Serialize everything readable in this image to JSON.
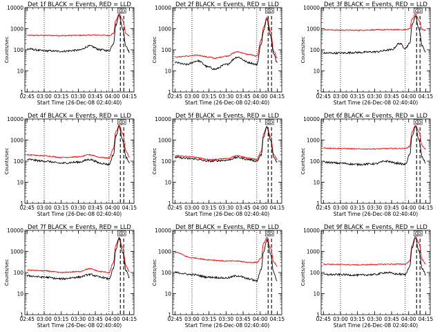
{
  "chart_data": {
    "type": "line",
    "layout": "3x3 grid of panels",
    "y_scale": "log",
    "ylim": [
      1,
      10000
    ],
    "xlim": [
      "02:43",
      "04:19"
    ],
    "x_ticks": [
      "02:45",
      "03:00",
      "03:15",
      "03:30",
      "03:45",
      "04:00",
      "04:15"
    ],
    "y_ticks": [
      "1",
      "10",
      "100",
      "1000",
      "10000"
    ],
    "ylabel": "Counts/sec",
    "xlabel": "Start Time (26-Dec-08 02:40:40)",
    "series_colors": {
      "events": "#000000",
      "lld": "#ff0000"
    },
    "panels": [
      {
        "title": "Det 1f BLACK = Events, RED = LLD",
        "vlines_dotted": [
          "03:00",
          "03:57"
        ],
        "vlines_dashed": [
          "04:07",
          "04:10"
        ],
        "markers": [
          "C",
          "D"
        ],
        "events": {
          "time": [
            "02:45",
            "03:00",
            "03:15",
            "03:30",
            "03:40",
            "03:50",
            "03:57",
            "04:01",
            "04:03",
            "04:06",
            "04:09",
            "04:12",
            "04:15"
          ],
          "value": [
            110,
            90,
            85,
            95,
            150,
            100,
            90,
            200,
            1500,
            4500,
            1000,
            150,
            80
          ]
        },
        "lld": {
          "time": [
            "02:45",
            "03:00",
            "03:15",
            "03:30",
            "03:45",
            "03:57",
            "04:01",
            "04:03",
            "04:06",
            "04:09",
            "04:12",
            "04:15"
          ],
          "value": [
            480,
            480,
            470,
            480,
            500,
            480,
            600,
            2500,
            5000,
            2500,
            600,
            450
          ]
        }
      },
      {
        "title": "Det 2f BLACK = Events, RED = LLD",
        "vlines_dotted": [
          "03:00",
          "03:57"
        ],
        "vlines_dashed": [
          "04:07",
          "04:10"
        ],
        "markers": [
          "C",
          "D"
        ],
        "events": {
          "time": [
            "02:45",
            "02:55",
            "03:05",
            "03:15",
            "03:20",
            "03:30",
            "03:40",
            "03:50",
            "03:57",
            "04:01",
            "04:03",
            "04:06",
            "04:09",
            "04:12",
            "04:15"
          ],
          "value": [
            25,
            20,
            30,
            15,
            12,
            20,
            45,
            25,
            20,
            200,
            800,
            3000,
            500,
            60,
            25
          ]
        },
        "lld": {
          "time": [
            "02:45",
            "02:55",
            "03:05",
            "03:15",
            "03:20",
            "03:30",
            "03:40",
            "03:50",
            "03:57",
            "04:01",
            "04:03",
            "04:06",
            "04:09",
            "04:12",
            "04:15"
          ],
          "value": [
            45,
            50,
            55,
            45,
            40,
            50,
            80,
            60,
            50,
            300,
            1200,
            3500,
            800,
            80,
            40
          ]
        }
      },
      {
        "title": "Det 3f BLACK = Events, RED = LLD",
        "vlines_dotted": [
          "03:00",
          "03:57"
        ],
        "vlines_dashed": [
          "04:07",
          "04:10"
        ],
        "markers": [
          "C",
          "D"
        ],
        "events": {
          "time": [
            "02:45",
            "03:00",
            "03:15",
            "03:30",
            "03:45",
            "03:52",
            "03:57",
            "04:01",
            "04:03",
            "04:06",
            "04:09",
            "04:12",
            "04:15"
          ],
          "value": [
            70,
            70,
            75,
            80,
            100,
            200,
            120,
            200,
            1500,
            4000,
            1000,
            150,
            80
          ]
        },
        "lld": {
          "time": [
            "02:45",
            "03:00",
            "03:15",
            "03:30",
            "03:45",
            "03:57",
            "04:01",
            "04:03",
            "04:06",
            "04:09",
            "04:12",
            "04:15"
          ],
          "value": [
            900,
            850,
            850,
            880,
            900,
            900,
            1000,
            3000,
            5000,
            2500,
            900,
            850
          ]
        }
      },
      {
        "title": "Det 4f BLACK = Events, RED = LLD",
        "vlines_dotted": [
          "03:00",
          "03:57"
        ],
        "vlines_dashed": [
          "04:07",
          "04:10"
        ],
        "markers": [
          "C",
          "D"
        ],
        "events": {
          "time": [
            "02:45",
            "03:00",
            "03:15",
            "03:30",
            "03:40",
            "03:50",
            "03:57",
            "04:01",
            "04:03",
            "04:06",
            "04:09",
            "04:12",
            "04:15"
          ],
          "value": [
            120,
            100,
            80,
            90,
            120,
            80,
            70,
            200,
            1500,
            4500,
            1000,
            150,
            80
          ]
        },
        "lld": {
          "time": [
            "02:45",
            "03:00",
            "03:15",
            "03:30",
            "03:40",
            "03:50",
            "03:57",
            "04:01",
            "04:03",
            "04:06",
            "04:09",
            "04:12",
            "04:15"
          ],
          "value": [
            200,
            180,
            150,
            160,
            200,
            150,
            140,
            400,
            2500,
            5000,
            2000,
            300,
            150
          ]
        }
      },
      {
        "title": "Det 5f BLACK = Events, RED = LLD",
        "vlines_dotted": [
          "03:00",
          "03:57"
        ],
        "vlines_dashed": [
          "04:07",
          "04:10"
        ],
        "markers": [
          "C",
          "D"
        ],
        "events": {
          "time": [
            "02:45",
            "03:00",
            "03:15",
            "03:30",
            "03:40",
            "03:50",
            "03:57",
            "04:01",
            "04:03",
            "04:06",
            "04:09",
            "04:12",
            "04:15"
          ],
          "value": [
            150,
            130,
            100,
            110,
            150,
            120,
            100,
            200,
            1500,
            4000,
            1000,
            150,
            90
          ]
        },
        "lld": {
          "time": [
            "02:45",
            "03:00",
            "03:15",
            "03:30",
            "03:40",
            "03:50",
            "03:57",
            "04:01",
            "04:03",
            "04:06",
            "04:09",
            "04:12",
            "04:15"
          ],
          "value": [
            180,
            160,
            120,
            130,
            180,
            140,
            120,
            300,
            2000,
            4500,
            1500,
            200,
            120
          ]
        }
      },
      {
        "title": "Det 6f BLACK = Events, RED = LLD",
        "vlines_dotted": [
          "03:00",
          "03:57"
        ],
        "vlines_dashed": [
          "04:07",
          "04:10"
        ],
        "markers": [
          "C",
          "D"
        ],
        "events": {
          "time": [
            "02:45",
            "03:00",
            "03:15",
            "03:30",
            "03:40",
            "03:50",
            "03:57",
            "04:01",
            "04:03",
            "04:06",
            "04:09",
            "04:12",
            "04:15"
          ],
          "value": [
            90,
            80,
            70,
            75,
            100,
            80,
            70,
            200,
            1500,
            4500,
            1000,
            150,
            80
          ]
        },
        "lld": {
          "time": [
            "02:45",
            "03:00",
            "03:15",
            "03:30",
            "03:45",
            "03:57",
            "04:01",
            "04:03",
            "04:06",
            "04:09",
            "04:12",
            "04:15"
          ],
          "value": [
            420,
            400,
            380,
            380,
            400,
            400,
            500,
            2500,
            5000,
            2500,
            500,
            380
          ]
        }
      },
      {
        "title": "Det 7f BLACK = Events, RED = LLD",
        "vlines_dotted": [
          "03:00",
          "03:57"
        ],
        "vlines_dashed": [
          "04:07",
          "04:10"
        ],
        "markers": [
          "C",
          "D"
        ],
        "events": {
          "time": [
            "02:45",
            "03:00",
            "03:15",
            "03:30",
            "03:40",
            "03:50",
            "03:57",
            "04:01",
            "04:03",
            "04:06",
            "04:09",
            "04:12",
            "04:15"
          ],
          "value": [
            70,
            60,
            50,
            60,
            80,
            60,
            50,
            150,
            1200,
            4000,
            900,
            120,
            60
          ]
        },
        "lld": {
          "time": [
            "02:45",
            "03:00",
            "03:15",
            "03:30",
            "03:40",
            "03:50",
            "03:57",
            "04:01",
            "04:03",
            "04:06",
            "04:09",
            "04:12",
            "04:15"
          ],
          "value": [
            130,
            120,
            100,
            110,
            150,
            110,
            100,
            300,
            2000,
            4500,
            1500,
            200,
            110
          ]
        }
      },
      {
        "title": "Det 8f BLACK = Events, RED = LLD",
        "vlines_dotted": [
          "03:00",
          "03:57"
        ],
        "vlines_dashed": [
          "04:07",
          "04:10"
        ],
        "markers": [
          "C",
          "D"
        ],
        "events": {
          "time": [
            "02:45",
            "03:00",
            "03:15",
            "03:30",
            "03:40",
            "03:50",
            "03:57",
            "04:01",
            "04:03",
            "04:06",
            "04:09",
            "04:12",
            "04:15"
          ],
          "value": [
            100,
            80,
            60,
            55,
            70,
            50,
            40,
            150,
            1000,
            3500,
            800,
            100,
            40
          ]
        },
        "lld": {
          "time": [
            "02:45",
            "03:00",
            "03:15",
            "03:30",
            "03:40",
            "03:50",
            "03:57",
            "04:01",
            "04:03",
            "04:06",
            "04:09",
            "04:12",
            "04:15"
          ],
          "value": [
            900,
            500,
            400,
            350,
            350,
            300,
            300,
            500,
            2500,
            4500,
            1500,
            300,
            200
          ]
        }
      },
      {
        "title": "Det 9f BLACK = Events, RED = LLD",
        "vlines_dotted": [
          "03:00",
          "03:57"
        ],
        "vlines_dashed": [
          "04:07",
          "04:10"
        ],
        "markers": [
          "C",
          "D"
        ],
        "events": {
          "time": [
            "02:45",
            "03:00",
            "03:15",
            "03:30",
            "03:40",
            "03:50",
            "03:57",
            "04:01",
            "04:03",
            "04:06",
            "04:09",
            "04:12",
            "04:15"
          ],
          "value": [
            80,
            80,
            75,
            80,
            100,
            85,
            80,
            200,
            1500,
            4500,
            1000,
            150,
            80
          ]
        },
        "lld": {
          "time": [
            "02:45",
            "03:00",
            "03:15",
            "03:30",
            "03:45",
            "03:57",
            "04:01",
            "04:03",
            "04:06",
            "04:09",
            "04:12",
            "04:15"
          ],
          "value": [
            250,
            240,
            230,
            240,
            250,
            250,
            350,
            2000,
            5000,
            2500,
            400,
            250
          ]
        }
      }
    ]
  }
}
